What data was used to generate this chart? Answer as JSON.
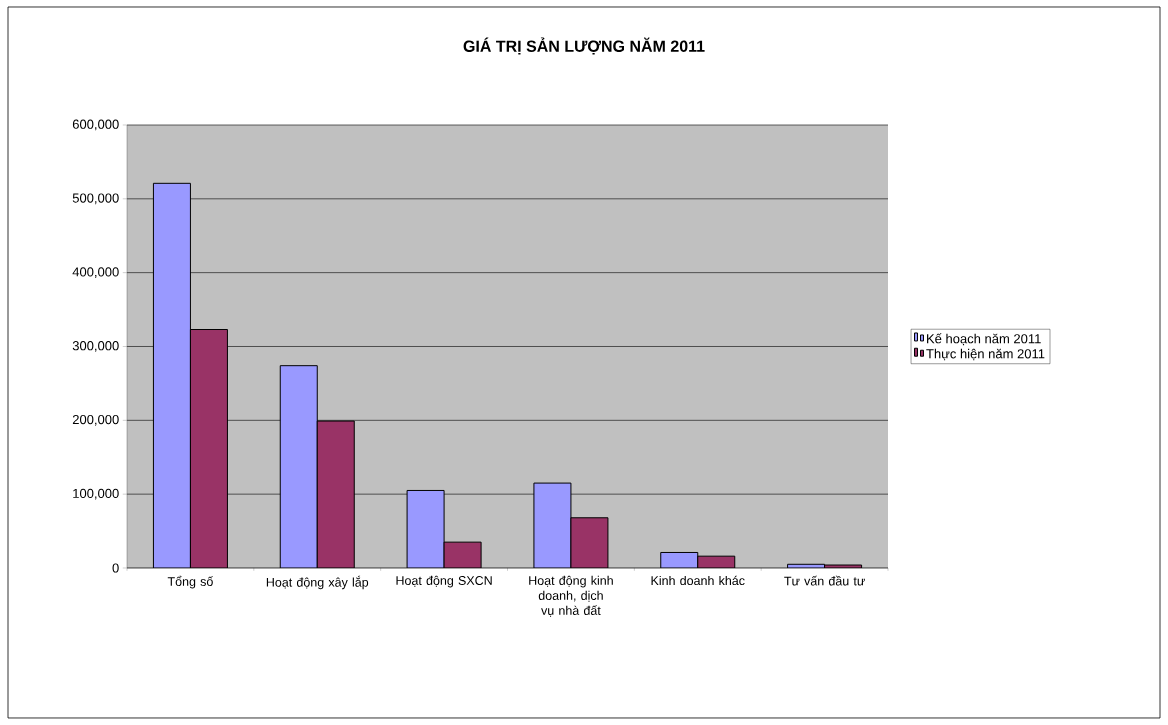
{
  "chart_data": {
    "type": "bar",
    "title": "GIÁ TRỊ SẢN LƯỢNG NĂM 2011",
    "categories": [
      "Tổng số",
      "Hoạt động xây lắp",
      "Hoạt động SXCN",
      "Hoạt động kinh doanh, dịch vụ nhà đất",
      "Kinh doanh khác",
      "Tư vấn đầu tư"
    ],
    "series": [
      {
        "name": "Kế hoạch năm 2011",
        "color": "#9999ff",
        "values": [
          521000,
          274000,
          105000,
          115000,
          21000,
          5000
        ]
      },
      {
        "name": "Thực hiện năm 2011",
        "color": "#993366",
        "values": [
          323000,
          199000,
          35000,
          68000,
          16000,
          4000
        ]
      }
    ],
    "ylim": [
      0,
      600000
    ],
    "yticks": [
      {
        "value": 0,
        "label": "0"
      },
      {
        "value": 100000,
        "label": "100,000"
      },
      {
        "value": 200000,
        "label": "200,000"
      },
      {
        "value": 300000,
        "label": "300,000"
      },
      {
        "value": 400000,
        "label": "400,000"
      },
      {
        "value": 500000,
        "label": "500,000"
      },
      {
        "value": 600000,
        "label": "600,000"
      }
    ],
    "grid": "y",
    "legend": "right"
  }
}
